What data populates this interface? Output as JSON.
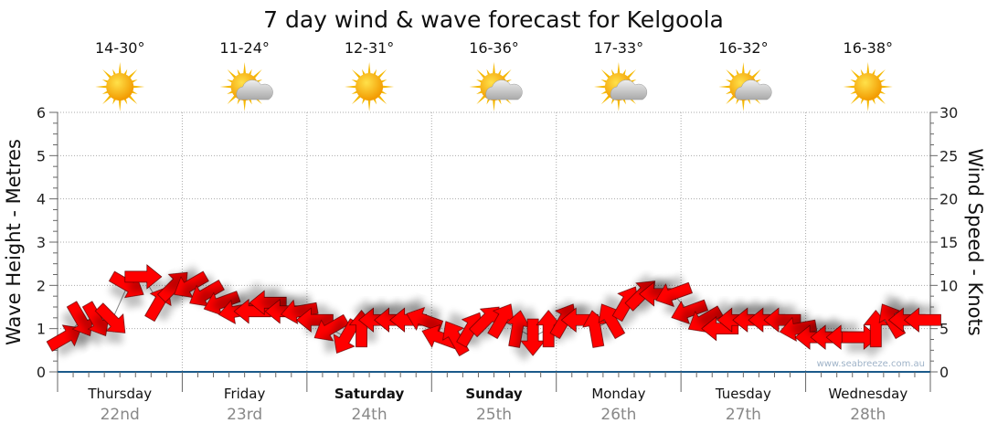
{
  "chart_data": {
    "type": "scatter",
    "title": "7 day wind & wave forecast for Kelgoola",
    "ylabel_left": "Wave Height - Metres",
    "ylabel_right": "Wind Speed - Knots",
    "ylim_left": [
      0,
      6
    ],
    "ylim_right": [
      0,
      30
    ],
    "yticks_left": [
      "0",
      "1",
      "2",
      "3",
      "4",
      "5",
      "6"
    ],
    "yticks_right": [
      "0",
      "5",
      "10",
      "15",
      "20",
      "25",
      "30"
    ],
    "grid": true,
    "watermark": "www.seabreeze.com.au",
    "days": [
      {
        "day": "Thursday",
        "date": "22nd",
        "temp": "14-30°",
        "icon": "sunny",
        "bold": false
      },
      {
        "day": "Friday",
        "date": "23rd",
        "temp": "11-24°",
        "icon": "partly-cloudy",
        "bold": false
      },
      {
        "day": "Saturday",
        "date": "24th",
        "temp": "12-31°",
        "icon": "sunny",
        "bold": true
      },
      {
        "day": "Sunday",
        "date": "25th",
        "temp": "16-36°",
        "icon": "partly-cloudy",
        "bold": true
      },
      {
        "day": "Monday",
        "date": "26th",
        "temp": "17-33°",
        "icon": "partly-cloudy",
        "bold": false
      },
      {
        "day": "Tuesday",
        "date": "27th",
        "temp": "16-32°",
        "icon": "partly-cloudy",
        "bold": false
      },
      {
        "day": "Wednesday",
        "date": "28th",
        "temp": "16-38°",
        "icon": "sunny",
        "bold": false
      }
    ],
    "series": [
      {
        "name": "Wind Speed (knots)",
        "interval_hours": 3,
        "values": [
          4,
          6,
          6,
          6,
          10,
          11,
          8,
          10,
          10,
          9,
          8,
          7,
          7,
          8,
          7,
          7,
          6,
          5,
          4,
          5,
          6,
          6,
          6,
          6,
          4,
          4,
          5,
          6,
          6,
          5,
          4,
          5,
          6,
          6,
          5,
          6,
          8,
          9,
          9,
          9,
          7,
          6,
          5,
          6,
          6,
          6,
          6,
          5,
          4,
          4,
          4,
          4,
          5,
          6,
          6,
          6
        ],
        "arrow_direction_deg": [
          -30,
          60,
          60,
          45,
          30,
          0,
          -60,
          -45,
          150,
          150,
          160,
          170,
          180,
          180,
          180,
          170,
          180,
          150,
          120,
          -90,
          180,
          180,
          180,
          200,
          200,
          -120,
          -60,
          -45,
          -60,
          -80,
          90,
          -90,
          -60,
          180,
          -100,
          -120,
          -60,
          -45,
          180,
          160,
          160,
          150,
          180,
          180,
          180,
          180,
          180,
          170,
          180,
          180,
          180,
          0,
          -90,
          -120,
          180,
          180
        ],
        "color": "#ff0000"
      }
    ]
  }
}
